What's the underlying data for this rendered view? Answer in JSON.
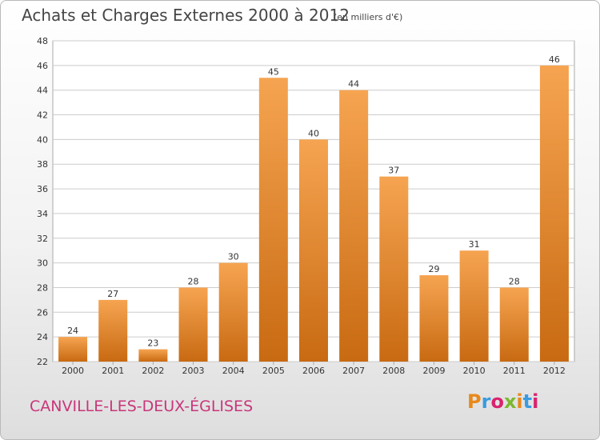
{
  "header": {
    "title": "Achats et Charges Externes 2000 à 2012",
    "subtitle": "(en milliers d'€)"
  },
  "footer": {
    "commune": "CANVILLE-LES-DEUX-ÉGLISES",
    "logo_text": "Proxiti",
    "logo_colors": [
      "#e8891b",
      "#3a9be0",
      "#d9236f",
      "#7cb82f",
      "#e8891b",
      "#3a9be0",
      "#d9236f"
    ]
  },
  "colors": {
    "bar_top": "#f6a451",
    "bar_bottom": "#c86a12",
    "grid": "#cccccc"
  },
  "chart_data": {
    "type": "bar",
    "title": "Achats et Charges Externes 2000 à 2012",
    "subtitle": "(en milliers d'€)",
    "categories": [
      "2000",
      "2001",
      "2002",
      "2003",
      "2004",
      "2005",
      "2006",
      "2007",
      "2008",
      "2009",
      "2010",
      "2011",
      "2012"
    ],
    "values": [
      24,
      27,
      23,
      28,
      30,
      45,
      40,
      44,
      37,
      29,
      31,
      28,
      46
    ],
    "ylim": [
      22,
      48
    ],
    "yticks": [
      22,
      24,
      26,
      28,
      30,
      32,
      34,
      36,
      38,
      40,
      42,
      44,
      46,
      48
    ],
    "grid": true,
    "xlabel": "",
    "ylabel": ""
  }
}
